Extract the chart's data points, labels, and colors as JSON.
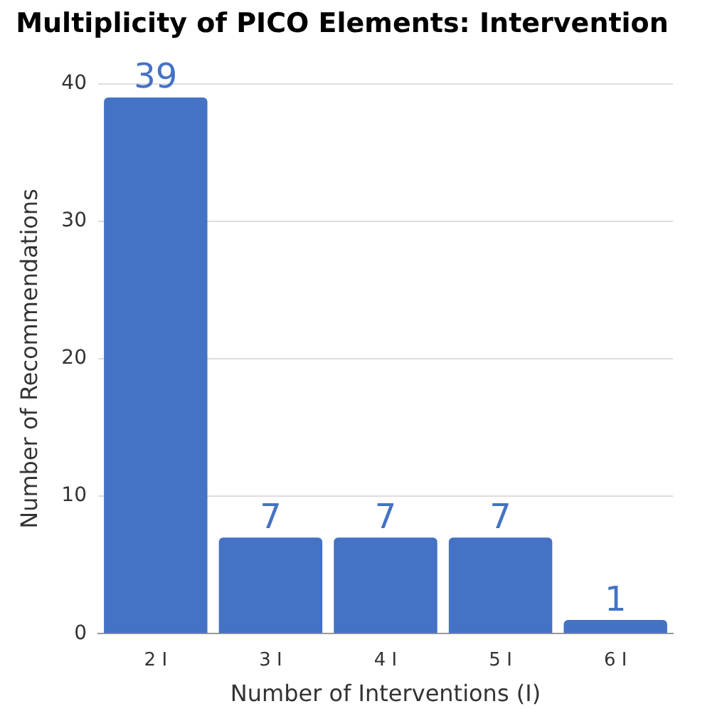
{
  "chart_data": {
    "type": "bar",
    "title": "Multiplicity of PICO Elements: Intervention",
    "xlabel": "Number of Interventions (I)",
    "ylabel": "Number of Recommendations",
    "categories": [
      "2 I",
      "3 I",
      "4 I",
      "5 I",
      "6 I"
    ],
    "values": [
      39,
      7,
      7,
      7,
      1
    ],
    "color": "#4472c4",
    "ylim": [
      0,
      40
    ],
    "yticks": [
      0,
      10,
      20,
      30,
      40
    ],
    "grid": "y",
    "data_labels": true,
    "legend": false
  }
}
